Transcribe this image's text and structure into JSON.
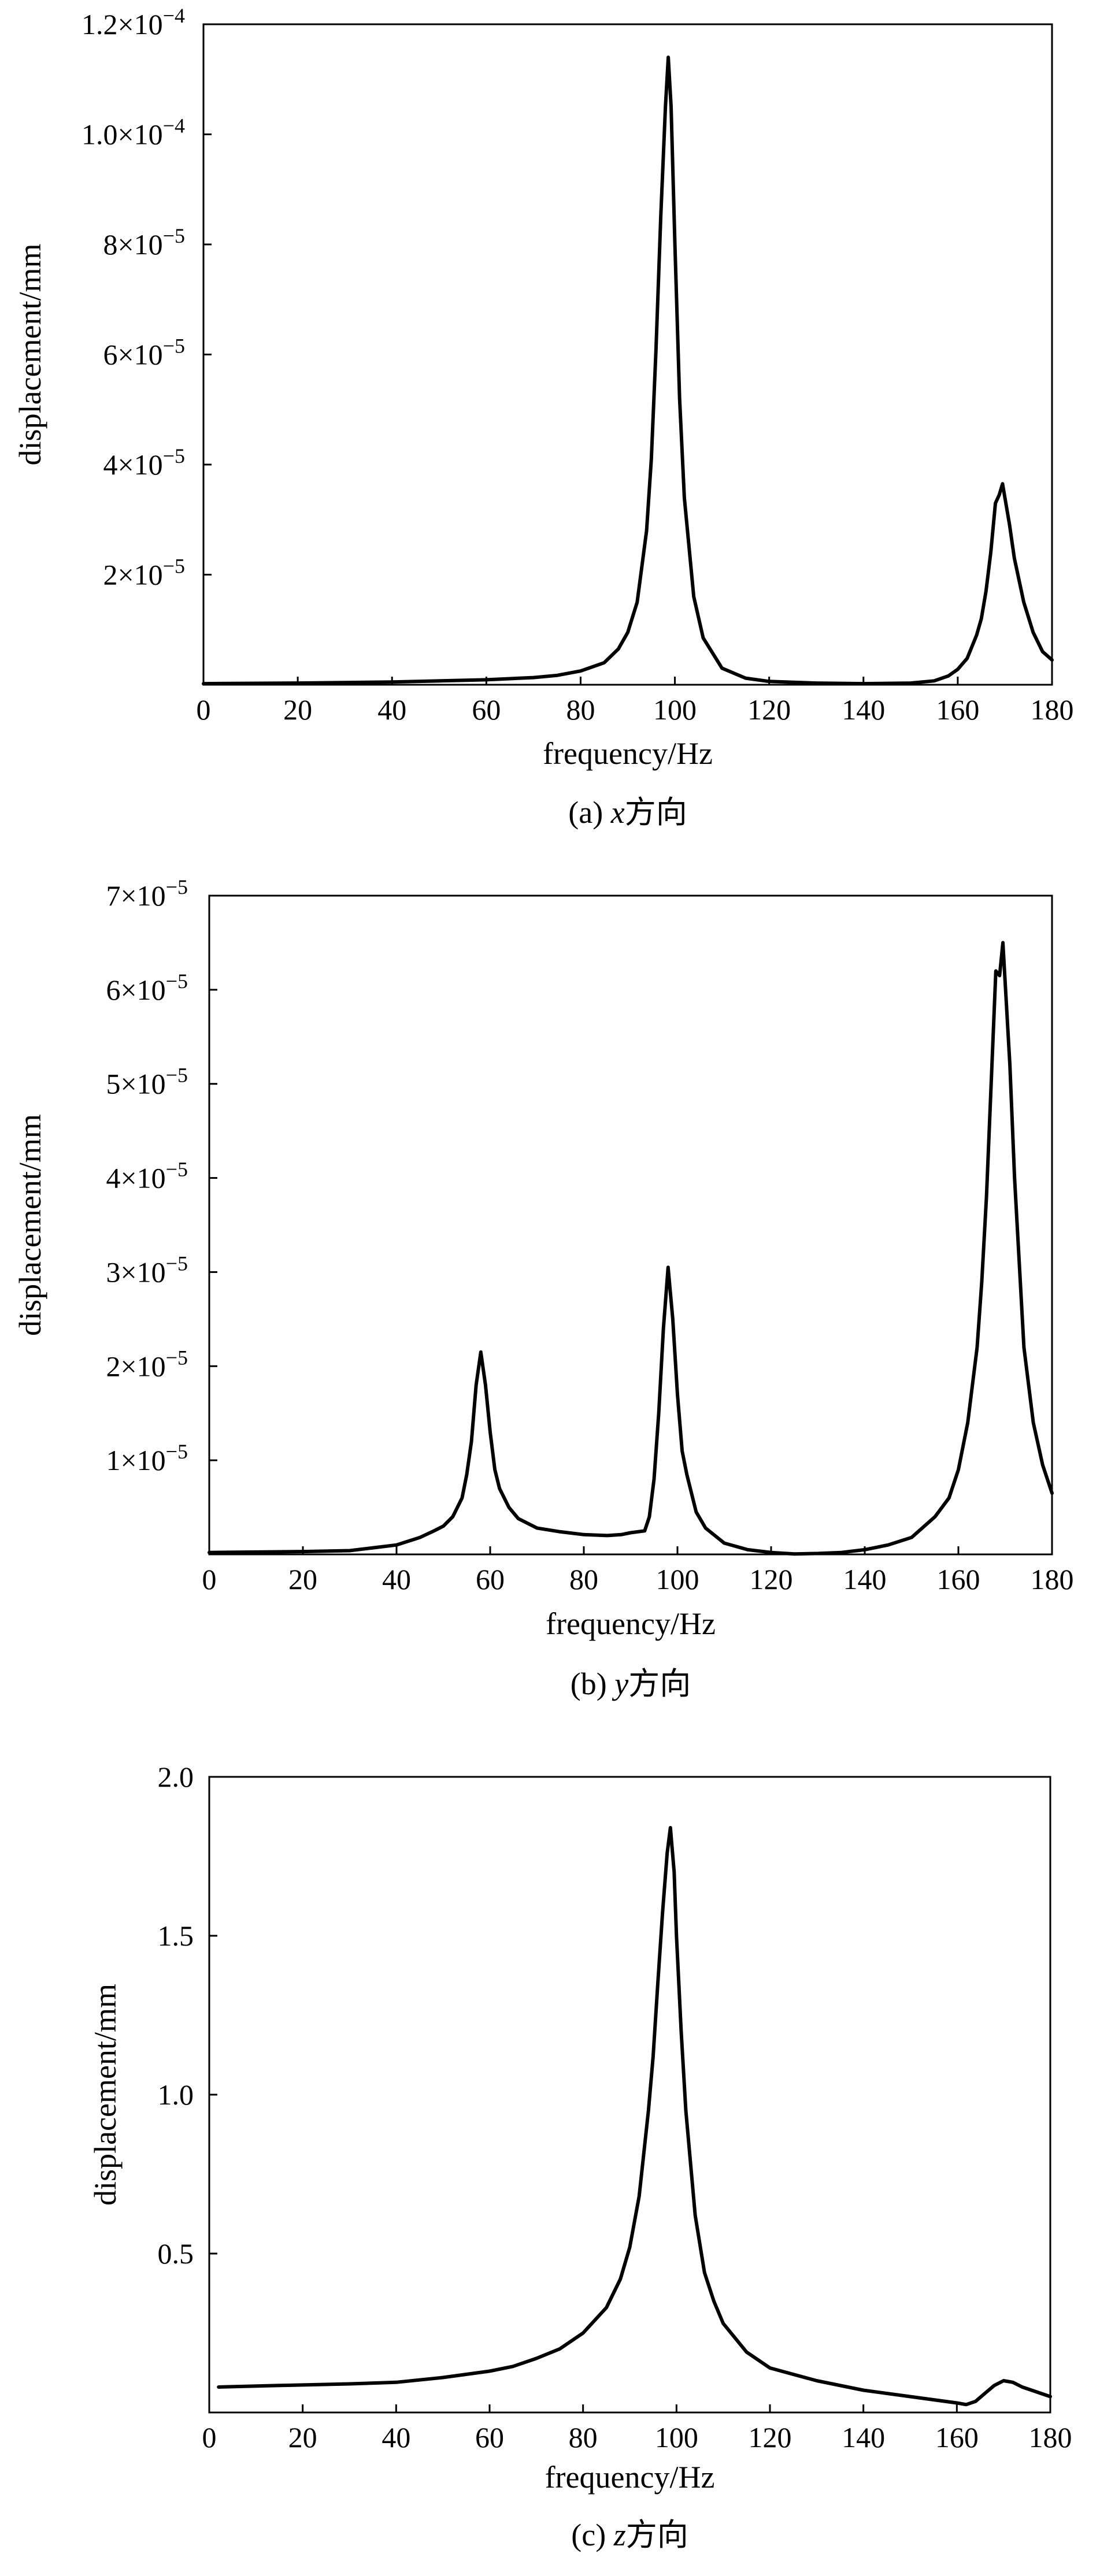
{
  "chart_data": [
    {
      "type": "line",
      "caption": "(a) x方向",
      "caption_prefix": "(a) ",
      "caption_var": "x",
      "caption_suffix": "方向",
      "xlabel": "frequency/Hz",
      "ylabel": "displacement/mm",
      "xlim": [
        0,
        180
      ],
      "ylim": [
        0,
        0.00012
      ],
      "x_ticks": [
        0,
        20,
        40,
        60,
        80,
        100,
        120,
        140,
        160,
        180
      ],
      "x_tick_labels": [
        "0",
        "20",
        "40",
        "60",
        "80",
        "100",
        "120",
        "140",
        "160",
        "180"
      ],
      "y_ticks": [
        2e-05,
        4e-05,
        6e-05,
        8e-05,
        0.0001,
        0.00012
      ],
      "y_tick_labels": [
        {
          "mant": "2",
          "exp": "−5"
        },
        {
          "mant": "4",
          "exp": "−5"
        },
        {
          "mant": "6",
          "exp": "−5"
        },
        {
          "mant": "8",
          "exp": "−5"
        },
        {
          "mant": "1.0",
          "exp": "−4"
        },
        {
          "mant": "1.2",
          "exp": "−4"
        }
      ],
      "series": [
        {
          "x": [
            0,
            20,
            40,
            60,
            70,
            75,
            80,
            85,
            88,
            90,
            92,
            94,
            95,
            96,
            97,
            98,
            98.6,
            99.2,
            100,
            101,
            102,
            104,
            106,
            110,
            115,
            120,
            130,
            140,
            150,
            155,
            158,
            160,
            162,
            164,
            165,
            166,
            167,
            168,
            168.8,
            169.5,
            171,
            172,
            174,
            176,
            178,
            180
          ],
          "y": [
            2e-07,
            3e-07,
            5e-07,
            9e-07,
            1.3e-06,
            1.7e-06,
            2.5e-06,
            4e-06,
            6.5e-06,
            9.5e-06,
            1.5e-05,
            2.8e-05,
            4.1e-05,
            6.1e-05,
            8.5e-05,
            0.000105,
            0.000114,
            0.000105,
            8e-05,
            5.2e-05,
            3.4e-05,
            1.6e-05,
            8.5e-06,
            3e-06,
            1.2e-06,
            6e-07,
            3e-07,
            2e-07,
            3e-07,
            7e-07,
            1.6e-06,
            2.8e-06,
            4.8e-06,
            9e-06,
            1.2e-05,
            1.7e-05,
            2.4e-05,
            3.3e-05,
            3.45e-05,
            3.65e-05,
            2.9e-05,
            2.3e-05,
            1.5e-05,
            9.5e-06,
            6e-06,
            4.5e-06
          ]
        }
      ]
    },
    {
      "type": "line",
      "caption": "(b) y方向",
      "caption_prefix": "(b) ",
      "caption_var": "y",
      "caption_suffix": "方向",
      "xlabel": "frequency/Hz",
      "ylabel": "displacement/mm",
      "xlim": [
        0,
        180
      ],
      "ylim": [
        0,
        7e-05
      ],
      "x_ticks": [
        0,
        20,
        40,
        60,
        80,
        100,
        120,
        140,
        160,
        180
      ],
      "x_tick_labels": [
        "0",
        "20",
        "40",
        "60",
        "80",
        "100",
        "120",
        "140",
        "160",
        "180"
      ],
      "y_ticks": [
        1e-05,
        2e-05,
        3e-05,
        4e-05,
        5e-05,
        6e-05,
        7e-05
      ],
      "y_tick_labels": [
        {
          "mant": "1",
          "exp": "−5"
        },
        {
          "mant": "2",
          "exp": "−5"
        },
        {
          "mant": "3",
          "exp": "−5"
        },
        {
          "mant": "4",
          "exp": "−5"
        },
        {
          "mant": "5",
          "exp": "−5"
        },
        {
          "mant": "6",
          "exp": "−5"
        },
        {
          "mant": "7",
          "exp": "−5"
        }
      ],
      "series": [
        {
          "x": [
            0,
            20,
            30,
            35,
            40,
            45,
            48,
            50,
            52,
            54,
            55,
            56,
            57,
            58,
            59,
            60,
            61,
            62,
            64,
            66,
            70,
            75,
            80,
            85,
            88,
            90,
            93,
            94,
            95,
            96,
            97,
            98,
            99,
            100,
            101,
            102,
            104,
            106,
            110,
            115,
            120,
            125,
            130,
            135,
            140,
            145,
            150,
            155,
            158,
            160,
            162,
            164,
            165,
            166,
            167,
            168,
            168.8,
            169.5,
            171,
            172,
            174,
            176,
            178,
            180
          ],
          "y": [
            2e-07,
            3e-07,
            4e-07,
            7e-07,
            1e-06,
            1.8e-06,
            2.5e-06,
            3e-06,
            4e-06,
            6e-06,
            8.5e-06,
            1.2e-05,
            1.8e-05,
            2.15e-05,
            1.8e-05,
            1.3e-05,
            9e-06,
            7e-06,
            5e-06,
            3.8e-06,
            2.8e-06,
            2.4e-06,
            2.1e-06,
            2e-06,
            2.1e-06,
            2.3e-06,
            2.5e-06,
            4e-06,
            8e-06,
            1.5e-05,
            2.4e-05,
            3.05e-05,
            2.5e-05,
            1.7e-05,
            1.1e-05,
            8.5e-06,
            4.5e-06,
            2.8e-06,
            1.2e-06,
            5e-07,
            2e-07,
            5e-08,
            1e-07,
            2e-07,
            5e-07,
            1e-06,
            1.8e-06,
            4e-06,
            6e-06,
            9e-06,
            1.4e-05,
            2.2e-05,
            2.9e-05,
            3.8e-05,
            5e-05,
            6.2e-05,
            6.15e-05,
            6.5e-05,
            5.2e-05,
            4e-05,
            2.2e-05,
            1.4e-05,
            9.5e-06,
            6.5e-06
          ]
        }
      ]
    },
    {
      "type": "line",
      "caption": "(c) z方向",
      "caption_prefix": "(c) ",
      "caption_var": "z",
      "caption_suffix": "方向",
      "xlabel": "frequency/Hz",
      "ylabel": "displacement/mm",
      "xlim": [
        0,
        180
      ],
      "ylim": [
        0,
        2.0
      ],
      "x_ticks": [
        0,
        20,
        40,
        60,
        80,
        100,
        120,
        140,
        160,
        180
      ],
      "x_tick_labels": [
        "0",
        "20",
        "40",
        "60",
        "80",
        "100",
        "120",
        "140",
        "160",
        "180"
      ],
      "y_ticks": [
        0.5,
        1.0,
        1.5,
        2.0
      ],
      "y_tick_labels": [
        {
          "mant": "0.5",
          "exp": ""
        },
        {
          "mant": "1.0",
          "exp": ""
        },
        {
          "mant": "1.5",
          "exp": ""
        },
        {
          "mant": "2.0",
          "exp": ""
        }
      ],
      "series": [
        {
          "x": [
            2,
            15,
            30,
            40,
            50,
            60,
            65,
            70,
            75,
            80,
            85,
            88,
            90,
            92,
            94,
            95,
            96,
            97,
            98,
            98.7,
            99.5,
            100,
            101,
            102,
            104,
            106,
            108,
            110,
            115,
            120,
            130,
            140,
            150,
            155,
            160,
            162,
            164,
            166,
            168,
            170,
            172,
            174,
            176,
            178,
            180
          ],
          "y": [
            0.08,
            0.085,
            0.09,
            0.095,
            0.11,
            0.13,
            0.145,
            0.17,
            0.2,
            0.25,
            0.33,
            0.42,
            0.52,
            0.68,
            0.95,
            1.12,
            1.35,
            1.57,
            1.76,
            1.84,
            1.7,
            1.5,
            1.2,
            0.95,
            0.62,
            0.44,
            0.35,
            0.28,
            0.19,
            0.14,
            0.1,
            0.07,
            0.05,
            0.04,
            0.03,
            0.025,
            0.035,
            0.06,
            0.085,
            0.1,
            0.095,
            0.08,
            0.07,
            0.06,
            0.05
          ]
        }
      ]
    }
  ]
}
